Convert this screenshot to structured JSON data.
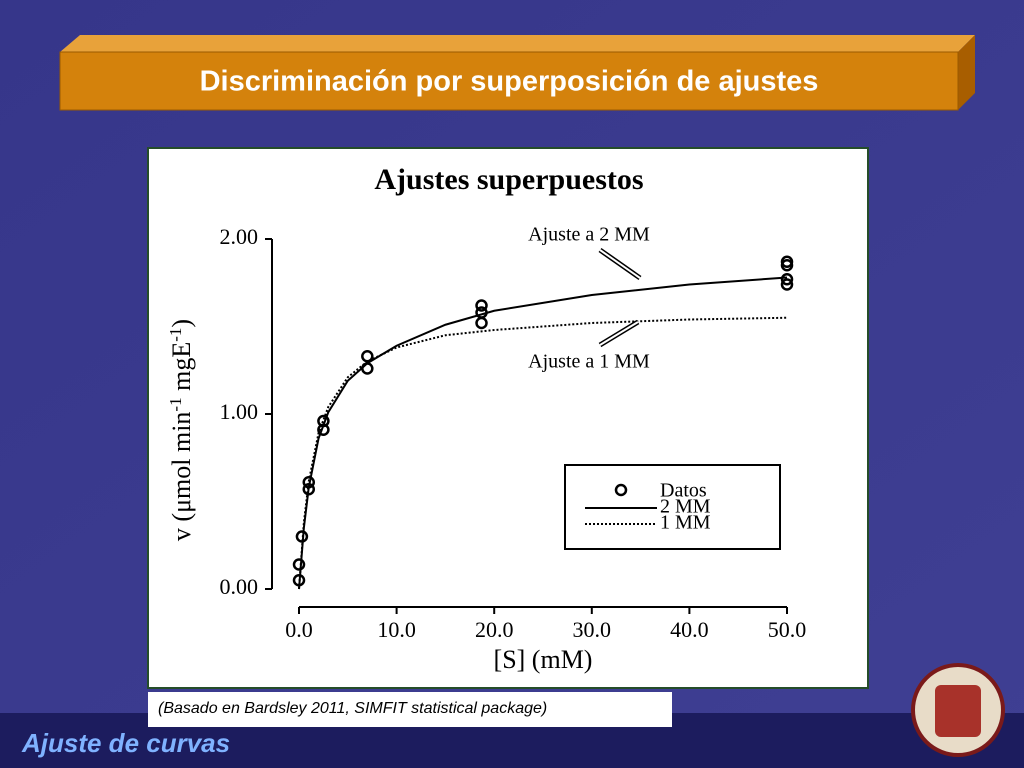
{
  "slide_title": "Discriminación por superposición de ajustes",
  "citation": "(Basado en Bardsley 2011, SIMFIT statistical package)",
  "footer": "Ajuste de curvas",
  "chart_data": {
    "type": "scatter",
    "title": "Ajustes superpuestos",
    "xlabel": "[S] (mM)",
    "ylabel_parts": [
      "v (μmol min",
      "-1",
      " mgE",
      "-1",
      ")"
    ],
    "xlim": [
      0,
      50
    ],
    "ylim": [
      0,
      2
    ],
    "xticks": [
      {
        "value": 0,
        "label": "0.0"
      },
      {
        "value": 10,
        "label": "10.0"
      },
      {
        "value": 20,
        "label": "20.0"
      },
      {
        "value": 30,
        "label": "30.0"
      },
      {
        "value": 40,
        "label": "40.0"
      },
      {
        "value": 50,
        "label": "50.0"
      }
    ],
    "yticks": [
      {
        "value": 0,
        "label": "0.00"
      },
      {
        "value": 1,
        "label": "1.00"
      },
      {
        "value": 2,
        "label": "2.00"
      }
    ],
    "series": [
      {
        "name": "Datos",
        "type": "scatter",
        "color": "#000000",
        "x": [
          0,
          0,
          0.3,
          1,
          1,
          2.5,
          2.5,
          7,
          7,
          18.7,
          18.7,
          18.7,
          50,
          50,
          50,
          50
        ],
        "values": [
          0.05,
          0.14,
          0.3,
          0.61,
          0.57,
          0.96,
          0.91,
          1.33,
          1.26,
          1.62,
          1.58,
          1.52,
          1.87,
          1.85,
          1.77,
          1.74
        ]
      },
      {
        "name": "2 MM",
        "type": "line",
        "style": "solid",
        "color": "#000000",
        "x": [
          0,
          0.5,
          1,
          2,
          3,
          5,
          7,
          10,
          15,
          20,
          30,
          40,
          50
        ],
        "values": [
          0,
          0.35,
          0.58,
          0.86,
          1.01,
          1.19,
          1.29,
          1.39,
          1.51,
          1.59,
          1.68,
          1.74,
          1.78
        ]
      },
      {
        "name": "1 MM",
        "type": "line",
        "style": "dotted",
        "color": "#000000",
        "x": [
          0,
          0.5,
          1,
          2,
          3,
          5,
          7,
          10,
          15,
          20,
          30,
          40,
          50
        ],
        "values": [
          0,
          0.38,
          0.615,
          0.89,
          1.04,
          1.21,
          1.3,
          1.38,
          1.45,
          1.48,
          1.52,
          1.54,
          1.55
        ]
      }
    ],
    "annotations": [
      "Ajuste a 2 MM",
      "Ajuste a 1 MM"
    ]
  }
}
